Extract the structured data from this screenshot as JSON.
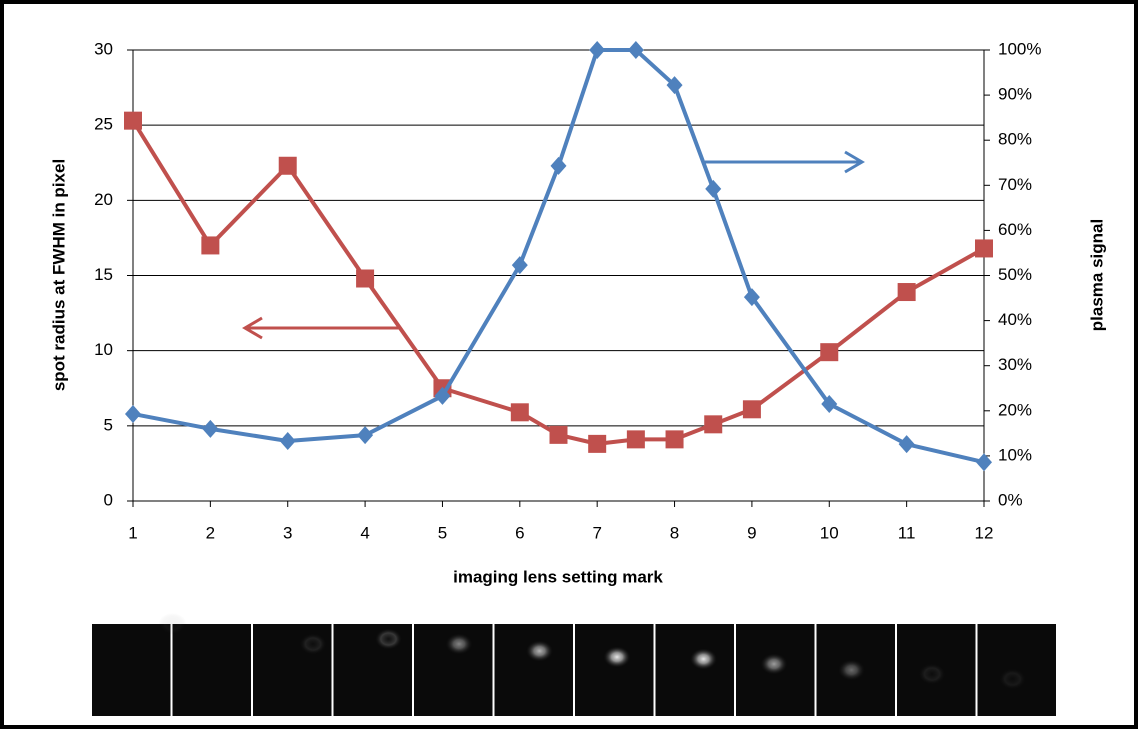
{
  "chart_data": {
    "type": "line",
    "xlabel": "imaging lens setting mark",
    "ylabel": "spot radius at FWHM in pixel",
    "y2label": "plasma signal",
    "x": [
      1,
      2,
      3,
      4,
      5,
      6,
      6.5,
      7,
      7.5,
      8,
      8.5,
      9,
      10,
      11,
      12
    ],
    "xlim": [
      1,
      12
    ],
    "xticks": [
      1,
      2,
      3,
      4,
      5,
      6,
      7,
      8,
      9,
      10,
      11,
      12
    ],
    "ylim": [
      0,
      30
    ],
    "yticks": [
      0,
      5,
      10,
      15,
      20,
      25,
      30
    ],
    "y2lim": [
      0,
      100
    ],
    "y2ticks": [
      {
        "value": 0,
        "label": "0%"
      },
      {
        "value": 10,
        "label": "10%"
      },
      {
        "value": 20,
        "label": "20%"
      },
      {
        "value": 30,
        "label": "30%"
      },
      {
        "value": 40,
        "label": "40%"
      },
      {
        "value": 50,
        "label": "50%"
      },
      {
        "value": 60,
        "label": "60%"
      },
      {
        "value": 70,
        "label": "70%"
      },
      {
        "value": 80,
        "label": "80%"
      },
      {
        "value": 90,
        "label": "90%"
      },
      {
        "value": 100,
        "label": "100%"
      }
    ],
    "grid": true,
    "series": [
      {
        "color": "#c0504d",
        "marker": "square",
        "values": [
          25.3,
          17.0,
          22.3,
          14.8,
          7.5,
          5.9,
          4.4,
          3.8,
          4.1,
          4.1,
          5.1,
          6.1,
          9.9,
          13.9,
          16.8
        ]
      },
      {
        "color": "#4f81bd",
        "marker": "diamond",
        "axis": "y2",
        "values": [
          19.3,
          16.0,
          13.3,
          14.6,
          23.3,
          52.3,
          74.3,
          100,
          100,
          92.2,
          69.2,
          45.2,
          21.5,
          12.6,
          8.6
        ]
      }
    ]
  }
}
